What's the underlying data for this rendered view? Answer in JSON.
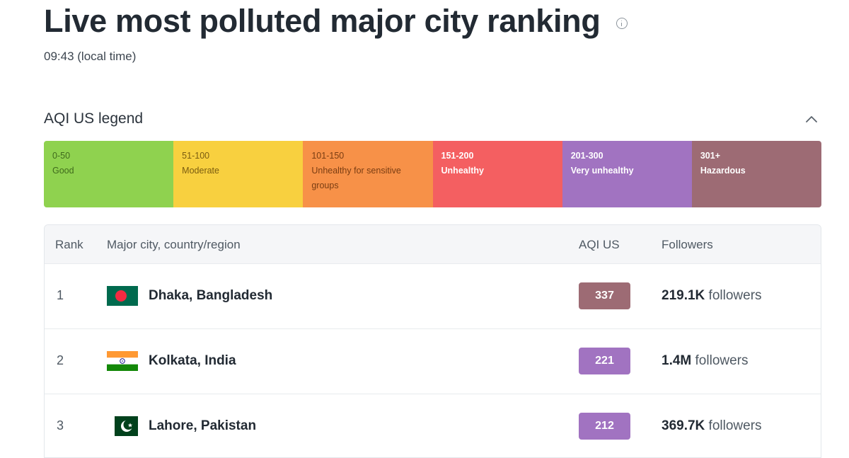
{
  "header": {
    "title": "Live most polluted major city ranking",
    "local_time": "09:43 (local time)"
  },
  "legend": {
    "title": "AQI US legend",
    "items": [
      {
        "range": "0-50",
        "label": "Good",
        "color": "#8fd24f",
        "text_color": "#3f6a1c"
      },
      {
        "range": "51-100",
        "label": "Moderate",
        "color": "#f8d03f",
        "text_color": "#7a5c10"
      },
      {
        "range": "101-150",
        "label": "Unhealthy for sensitive groups",
        "color": "#f79148",
        "text_color": "#7a3d12"
      },
      {
        "range": "151-200",
        "label": "Unhealthy",
        "color": "#f45f61",
        "text_color": "#ffffff"
      },
      {
        "range": "201-300",
        "label": "Very unhealthy",
        "color": "#a173c1",
        "text_color": "#ffffff"
      },
      {
        "range": "301+",
        "label": "Hazardous",
        "color": "#9d6b74",
        "text_color": "#ffffff"
      }
    ]
  },
  "table": {
    "columns": {
      "rank": "Rank",
      "city": "Major city, country/region",
      "aqi": "AQI US",
      "followers": "Followers"
    },
    "rows": [
      {
        "rank": "1",
        "flag": "bangladesh-flag-icon",
        "city": "Dhaka, Bangladesh",
        "aqi": "337",
        "aqi_color": "#9d6b74",
        "followers_count": "219.1K",
        "followers_suffix": " followers"
      },
      {
        "rank": "2",
        "flag": "india-flag-icon",
        "city": "Kolkata, India",
        "aqi": "221",
        "aqi_color": "#a173c1",
        "followers_count": "1.4M",
        "followers_suffix": " followers"
      },
      {
        "rank": "3",
        "flag": "pakistan-flag-icon",
        "city": "Lahore, Pakistan",
        "aqi": "212",
        "aqi_color": "#a173c1",
        "followers_count": "369.7K",
        "followers_suffix": " followers"
      }
    ]
  }
}
